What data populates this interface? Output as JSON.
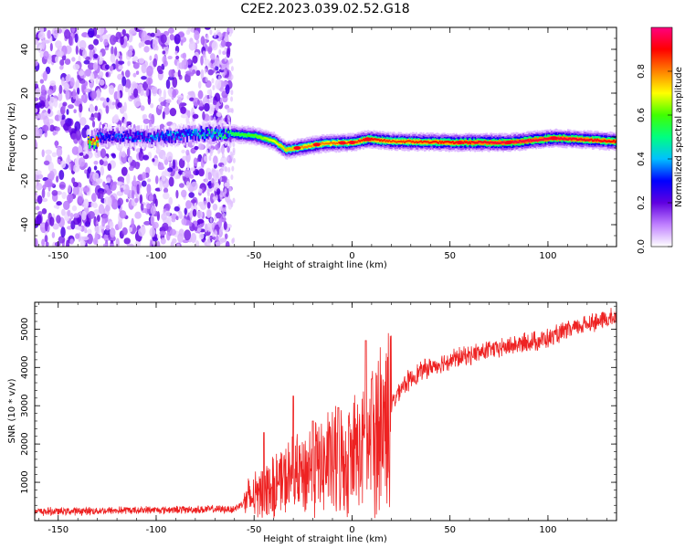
{
  "title": "C2E2.2023.039.02.52.G18",
  "chart_data": [
    {
      "type": "heatmap",
      "xlabel": "Height of straight line (km)",
      "ylabel": "Frequency (Hz)",
      "xlim": [
        -162,
        135
      ],
      "ylim": [
        -50,
        50
      ],
      "xticks": [
        -150,
        -100,
        -50,
        0,
        50,
        100
      ],
      "yticks": [
        -40,
        -20,
        0,
        20,
        40
      ],
      "colorbar": {
        "label": "Normalized spectral amplitude",
        "range": [
          0,
          1
        ],
        "ticks": [
          "0.0",
          "0.2",
          "0.4",
          "0.6",
          "0.8"
        ],
        "colors": [
          "#ffffff",
          "#c080ff",
          "#6000e0",
          "#0000ff",
          "#00c0ff",
          "#00ff80",
          "#40ff00",
          "#ffff00",
          "#ff8000",
          "#ff0000",
          "#ff0080"
        ]
      },
      "ridge": [
        {
          "x": -130,
          "freq": 0.5,
          "amp": 0.35
        },
        {
          "x": -100,
          "freq": 0.0,
          "amp": 0.4
        },
        {
          "x": -80,
          "freq": 1.5,
          "amp": 0.45
        },
        {
          "x": -62,
          "freq": 1.5,
          "amp": 0.55
        },
        {
          "x": -50,
          "freq": 0.5,
          "amp": 0.6
        },
        {
          "x": -40,
          "freq": -2.0,
          "amp": 0.7
        },
        {
          "x": -34,
          "freq": -6.0,
          "amp": 0.75
        },
        {
          "x": -25,
          "freq": -4.5,
          "amp": 0.8
        },
        {
          "x": -15,
          "freq": -3.0,
          "amp": 0.8
        },
        {
          "x": 0,
          "freq": -2.5,
          "amp": 0.85
        },
        {
          "x": 8,
          "freq": -1.0,
          "amp": 0.9
        },
        {
          "x": 20,
          "freq": -2.0,
          "amp": 0.85
        },
        {
          "x": 50,
          "freq": -2.5,
          "amp": 0.9
        },
        {
          "x": 80,
          "freq": -2.5,
          "amp": 0.95
        },
        {
          "x": 103,
          "freq": -0.5,
          "amp": 0.95
        },
        {
          "x": 135,
          "freq": -2.0,
          "amp": 0.9
        }
      ]
    },
    {
      "type": "line",
      "xlabel": "Height of straight line (km)",
      "ylabel": "SNR (10 * v/v)",
      "xlim": [
        -162,
        135
      ],
      "ylim": [
        0,
        5700
      ],
      "xticks": [
        -150,
        -100,
        -50,
        0,
        50,
        100
      ],
      "yticks": [
        1000,
        2000,
        3000,
        4000,
        5000
      ],
      "color": "#ee2222",
      "trend": [
        {
          "x": -162,
          "y": 230
        },
        {
          "x": -100,
          "y": 280
        },
        {
          "x": -60,
          "y": 300
        },
        {
          "x": -55,
          "y": 500
        },
        {
          "x": -40,
          "y": 900
        },
        {
          "x": -30,
          "y": 1100
        },
        {
          "x": -20,
          "y": 1400
        },
        {
          "x": -10,
          "y": 1500
        },
        {
          "x": 0,
          "y": 1700
        },
        {
          "x": 10,
          "y": 2000
        },
        {
          "x": 18,
          "y": 2800
        },
        {
          "x": 25,
          "y": 3500
        },
        {
          "x": 35,
          "y": 3900
        },
        {
          "x": 50,
          "y": 4200
        },
        {
          "x": 70,
          "y": 4450
        },
        {
          "x": 100,
          "y": 4750
        },
        {
          "x": 120,
          "y": 5150
        },
        {
          "x": 135,
          "y": 5300
        }
      ],
      "spikes": [
        {
          "x": -30,
          "y": 3250
        },
        {
          "x": -7,
          "y": 2950
        },
        {
          "x": 7,
          "y": 4700
        },
        {
          "x": 10,
          "y": 3700
        },
        {
          "x": -45,
          "y": 2300
        },
        {
          "x": -20,
          "y": 2600
        }
      ]
    }
  ]
}
